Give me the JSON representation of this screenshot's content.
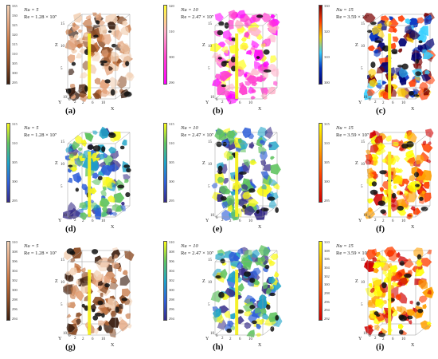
{
  "panels": [
    {
      "caption": "(a)",
      "nu_label": "Nu = 5",
      "re_label": "Re = 1.28 × 10⁷",
      "ticks": [
        "335",
        "330",
        "325",
        "320",
        "315",
        "310",
        "305",
        "300",
        "295"
      ],
      "cmap": "copper"
    },
    {
      "caption": "(b)",
      "nu_label": "Nu = 10",
      "re_label": "Re = 2.47 × 10⁷",
      "ticks": [
        "320",
        "310",
        "300",
        "290"
      ],
      "cmap": "spring"
    },
    {
      "caption": "(c)",
      "nu_label": "Nu = 15",
      "re_label": "Re = 3.59 × 10⁷",
      "ticks": [
        "330",
        "320",
        "310",
        "300"
      ],
      "cmap": "jet"
    },
    {
      "caption": "(d)",
      "nu_label": "Nu = 5",
      "re_label": "Re = 1.28 × 10⁷",
      "ticks": [
        "315",
        "310",
        "305",
        "300",
        "295"
      ],
      "cmap": "parula"
    },
    {
      "caption": "(e)",
      "nu_label": "Nu = 10",
      "re_label": "Re = 2.47 × 10⁷",
      "ticks": [
        "315",
        "310",
        "305",
        "300",
        "295"
      ],
      "cmap": "parula"
    },
    {
      "caption": "(f)",
      "nu_label": "Nu = 15",
      "re_label": "Re = 3.59 × 10⁷",
      "ticks": [
        "315",
        "310",
        "305",
        "300",
        "295"
      ],
      "cmap": "autumn"
    },
    {
      "caption": "(g)",
      "nu_label": "Nu = 5",
      "re_label": "Re = 1.28 × 10⁷",
      "ticks": [
        "310",
        "308",
        "306",
        "304",
        "302",
        "300",
        "298",
        "296",
        "294"
      ],
      "cmap": "copper"
    },
    {
      "caption": "(h)",
      "nu_label": "Nu = 10",
      "re_label": "Re = 2.47 × 10⁷",
      "ticks": [
        "310",
        "308",
        "306",
        "304",
        "302",
        "300",
        "298",
        "296",
        "294"
      ],
      "cmap": "parula"
    },
    {
      "caption": "(i)",
      "nu_label": "Nu = 15",
      "re_label": "Re = 3.59 × 10⁷",
      "ticks": [
        "310",
        "308",
        "306",
        "304",
        "302",
        "300",
        "298",
        "296",
        "294",
        "292"
      ],
      "cmap": "autumn"
    }
  ],
  "axes": {
    "z_label": "Z",
    "x_label": "X",
    "y_label": "Y",
    "z_ticks": [
      "15",
      "10",
      "5"
    ],
    "x_ticks": [
      "2",
      "6",
      "10"
    ],
    "y_ticks": [
      "10",
      "6",
      "2"
    ]
  },
  "colormaps": {
    "copper": [
      "#f3d3b8",
      "#e4a27a",
      "#c4703a",
      "#8a4a22",
      "#3a1e10"
    ],
    "spring": [
      "#ffff33",
      "#ffb0c8",
      "#ff40d0",
      "#ff00ff"
    ],
    "jet": [
      "#7a0000",
      "#ff3a00",
      "#ffd000",
      "#3ad0ff",
      "#0030c0",
      "#000070"
    ],
    "parula": [
      "#f9f91c",
      "#5fc35f",
      "#1ea3c7",
      "#2f5fd8",
      "#352a87"
    ],
    "autumn": [
      "#ffff00",
      "#ffa000",
      "#ff4000",
      "#d00000"
    ]
  }
}
